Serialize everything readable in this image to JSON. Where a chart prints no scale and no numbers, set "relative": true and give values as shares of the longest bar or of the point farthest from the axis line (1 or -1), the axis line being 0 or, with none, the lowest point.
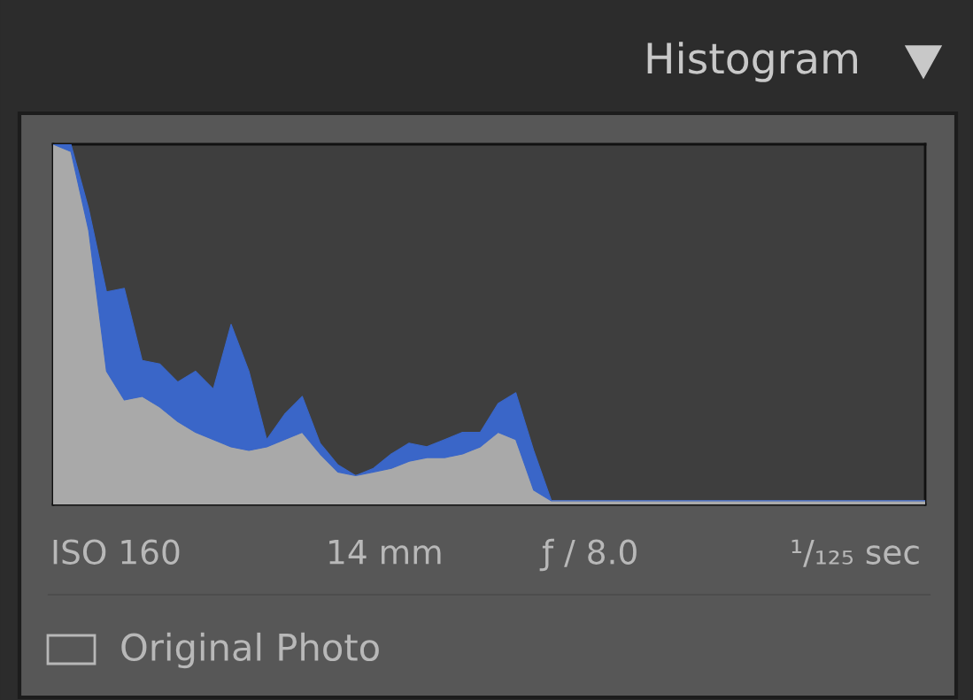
{
  "chart_data": {
    "type": "area",
    "relative": true,
    "stacked": true,
    "title": "Histogram",
    "categories": [
      null,
      null,
      null,
      null,
      null,
      null,
      null,
      null,
      null,
      null,
      null,
      null,
      null,
      null,
      null,
      null,
      null,
      null,
      null,
      null,
      null,
      null,
      null,
      null,
      null,
      null,
      null,
      null,
      null,
      null,
      null,
      null,
      null,
      null,
      null,
      null,
      null,
      null,
      null,
      null,
      null,
      null,
      null,
      null,
      null,
      null,
      null,
      null,
      null,
      null
    ],
    "series": [
      {
        "color": "#a9a9a9",
        "values": [
          1.0,
          0.98,
          0.76,
          0.37,
          0.29,
          0.3,
          0.27,
          0.23,
          0.2,
          0.18,
          0.16,
          0.15,
          0.16,
          0.18,
          0.2,
          0.14,
          0.09,
          0.08,
          0.09,
          0.1,
          0.12,
          0.13,
          0.13,
          0.14,
          0.16,
          0.2,
          0.18,
          0.04,
          0.01,
          0.01,
          0.01,
          0.01,
          0.01,
          0.01,
          0.01,
          0.01,
          0.01,
          0.01,
          0.01,
          0.01,
          0.01,
          0.01,
          0.01,
          0.01,
          0.01,
          0.01,
          0.01,
          0.01,
          0.01,
          0.01
        ]
      },
      {
        "color": "#3a66c8",
        "values": [
          0,
          0.02,
          0.06,
          0.22,
          0.31,
          0.1,
          0.12,
          0.11,
          0.17,
          0.14,
          0.34,
          0.22,
          0.02,
          0.07,
          0.1,
          0.03,
          0.02,
          0,
          0.01,
          0.04,
          0.05,
          0.03,
          0.05,
          0.06,
          0.04,
          0.08,
          0.13,
          0.11,
          0,
          0,
          0,
          0,
          0,
          0,
          0,
          0,
          0,
          0,
          0,
          0,
          0,
          0,
          0,
          0,
          0,
          0,
          0,
          0,
          0,
          0
        ]
      }
    ],
    "annotations": [
      "ISO 160",
      "14 mm",
      "ƒ / 8.0",
      "¹/₁₂₅ sec",
      "Original Photo"
    ]
  }
}
